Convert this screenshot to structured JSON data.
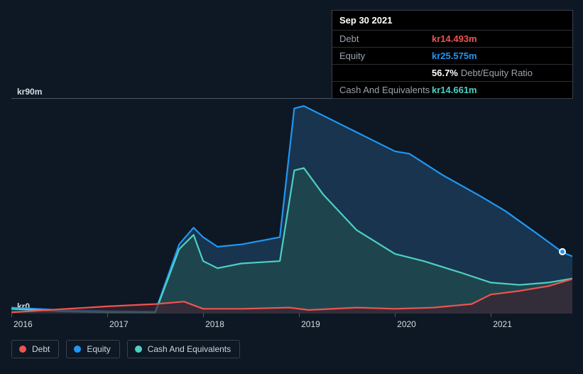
{
  "tooltip": {
    "date": "Sep 30 2021",
    "rows": [
      {
        "label": "Debt",
        "value": "kr14.493m",
        "color": "#ef5350"
      },
      {
        "label": "Equity",
        "value": "kr25.575m",
        "color": "#2196f3"
      },
      {
        "label": "",
        "ratio_pct": "56.7%",
        "ratio_label": "Debt/Equity Ratio"
      },
      {
        "label": "Cash And Equivalents",
        "value": "kr14.661m",
        "color": "#4dd0c0"
      }
    ]
  },
  "chart": {
    "type": "area",
    "background_color": "#0d1824",
    "plot_border_color": "#4d5560",
    "y_axis": {
      "labels": [
        {
          "text": "kr90m",
          "value": 90
        },
        {
          "text": "kr0",
          "value": 0
        }
      ],
      "min": 0,
      "max": 90,
      "label_fontsize": 12,
      "label_color": "#d6dce2"
    },
    "x_axis": {
      "labels": [
        "2016",
        "2017",
        "2018",
        "2019",
        "2020",
        "2021"
      ],
      "min": 2016.0,
      "max": 2021.85,
      "label_fontsize": 12,
      "label_color": "#d6dce2"
    },
    "crosshair_x": 2021.75,
    "crosshair_marker_y": 25.6,
    "series": [
      {
        "name": "Equity",
        "color": "#2196f3",
        "fill_color": "#1c3a56",
        "fill_opacity": 0.85,
        "line_width": 2.2,
        "points": [
          [
            2016.0,
            2.5
          ],
          [
            2016.5,
            1.5
          ],
          [
            2017.0,
            1.0
          ],
          [
            2017.5,
            0.8
          ],
          [
            2017.75,
            29
          ],
          [
            2017.9,
            36
          ],
          [
            2018.0,
            32
          ],
          [
            2018.15,
            28
          ],
          [
            2018.4,
            29
          ],
          [
            2018.8,
            32
          ],
          [
            2018.95,
            86
          ],
          [
            2019.05,
            87
          ],
          [
            2019.3,
            82
          ],
          [
            2019.7,
            74
          ],
          [
            2020.0,
            68
          ],
          [
            2020.15,
            67
          ],
          [
            2020.5,
            58
          ],
          [
            2020.9,
            49
          ],
          [
            2021.15,
            43
          ],
          [
            2021.5,
            33
          ],
          [
            2021.75,
            25.6
          ],
          [
            2021.85,
            24
          ]
        ]
      },
      {
        "name": "Cash And Equivalents",
        "color": "#4dd0c0",
        "fill_color": "#1f4a4d",
        "fill_opacity": 0.8,
        "line_width": 2.2,
        "points": [
          [
            2016.0,
            2
          ],
          [
            2016.5,
            1
          ],
          [
            2017.0,
            0.5
          ],
          [
            2017.5,
            0.4
          ],
          [
            2017.75,
            27
          ],
          [
            2017.9,
            33
          ],
          [
            2018.0,
            22
          ],
          [
            2018.15,
            19
          ],
          [
            2018.4,
            21
          ],
          [
            2018.8,
            22
          ],
          [
            2018.95,
            60
          ],
          [
            2019.05,
            61
          ],
          [
            2019.25,
            50
          ],
          [
            2019.6,
            35
          ],
          [
            2020.0,
            25
          ],
          [
            2020.3,
            22
          ],
          [
            2020.7,
            17
          ],
          [
            2021.0,
            13
          ],
          [
            2021.3,
            12
          ],
          [
            2021.6,
            13
          ],
          [
            2021.85,
            14.7
          ]
        ]
      },
      {
        "name": "Debt",
        "color": "#ef5350",
        "fill_color": "#3a2330",
        "fill_opacity": 0.7,
        "line_width": 2.2,
        "points": [
          [
            2016.0,
            0.5
          ],
          [
            2016.5,
            1.8
          ],
          [
            2017.0,
            3.0
          ],
          [
            2017.5,
            4.0
          ],
          [
            2017.8,
            5.0
          ],
          [
            2018.0,
            2.0
          ],
          [
            2018.4,
            2.0
          ],
          [
            2018.9,
            2.5
          ],
          [
            2019.1,
            1.5
          ],
          [
            2019.6,
            2.5
          ],
          [
            2020.0,
            2.0
          ],
          [
            2020.4,
            2.5
          ],
          [
            2020.8,
            4.0
          ],
          [
            2021.0,
            8.0
          ],
          [
            2021.3,
            9.5
          ],
          [
            2021.6,
            11.5
          ],
          [
            2021.85,
            14.5
          ]
        ]
      }
    ]
  },
  "legend": {
    "items": [
      {
        "label": "Debt",
        "color": "#ef5350"
      },
      {
        "label": "Equity",
        "color": "#2196f3"
      },
      {
        "label": "Cash And Equivalents",
        "color": "#4dd0c0"
      }
    ],
    "border_color": "#3a4048",
    "text_color": "#cfd6dd",
    "fontsize": 12
  }
}
